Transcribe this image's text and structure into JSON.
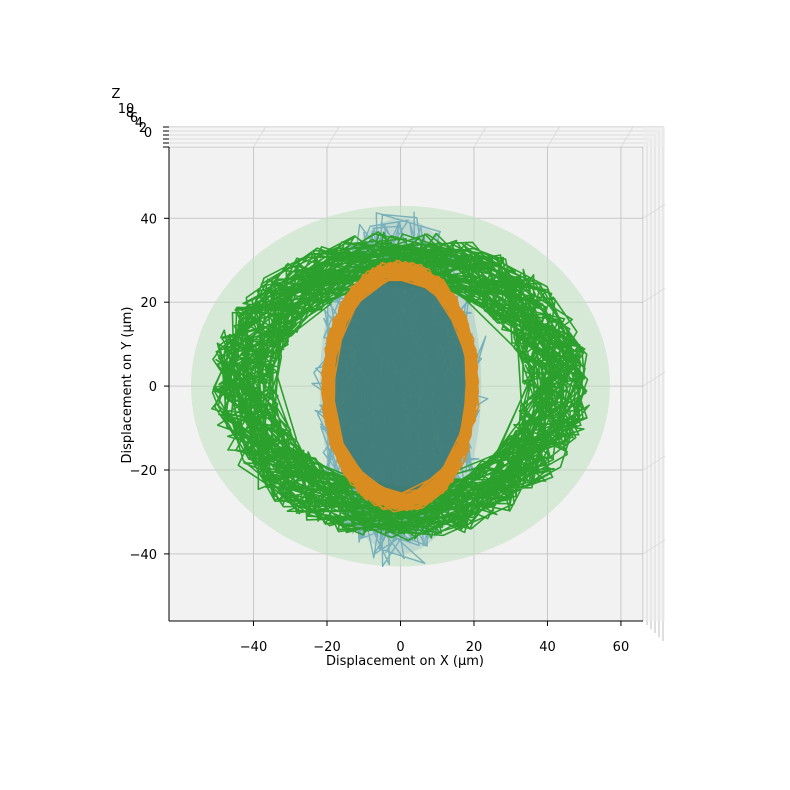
{
  "chart_data": {
    "type": "line",
    "projection": "3d",
    "view": "top-down",
    "xlabel": "Displacement on X (μm)",
    "ylabel": "Displacement on Y (μm)",
    "zlabel": "Z",
    "xlim": [
      -63,
      66
    ],
    "ylim": [
      -56,
      57
    ],
    "xticks": [
      -40,
      -20,
      0,
      20,
      40,
      60
    ],
    "xtick_labels": [
      "−40",
      "−20",
      "0",
      "20",
      "40",
      "60"
    ],
    "yticks": [
      -40,
      -20,
      0,
      20,
      40
    ],
    "ytick_labels": [
      "−40",
      "−20",
      "0",
      "20",
      "40"
    ],
    "zticks": [
      0,
      2,
      4,
      6,
      8,
      10
    ],
    "ztick_labels": [
      "0",
      "2",
      "4",
      "6",
      "8",
      "10"
    ],
    "grid": true,
    "legend": "none",
    "series": [
      {
        "color": "#1f77b4",
        "fill": "#b0c4de",
        "shape": "filled ellipse trace",
        "center": [
          0,
          0
        ],
        "x_range": [
          -27,
          29
        ],
        "y_range": [
          -48,
          49
        ],
        "radius_x": 22,
        "radius_y": 40
      },
      {
        "color": "#d98c1f",
        "fill": "#3f7b78",
        "shape": "ring trace",
        "center": [
          0,
          0
        ],
        "x_range": [
          -21,
          25
        ],
        "y_range": [
          -30,
          34
        ],
        "radius_x": 20,
        "radius_y": 28
      },
      {
        "color": "#2ca02c",
        "fill": "#bfe0bf",
        "shape": "elliptical ring trace",
        "center": [
          0,
          0
        ],
        "x_range": [
          -60,
          63
        ],
        "y_range": [
          -43,
          47
        ],
        "radius_x": 49,
        "radius_y": 35
      }
    ]
  }
}
